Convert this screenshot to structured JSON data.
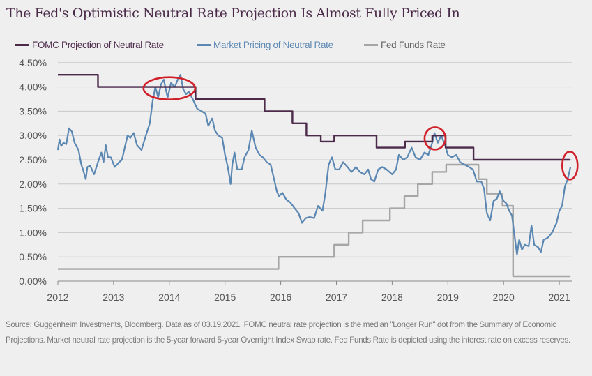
{
  "chart_data": {
    "type": "line",
    "title": "The Fed's Optimistic Neutral Rate Projection Is Almost Fully Priced In",
    "xlabel": "",
    "ylabel": "",
    "xlim": [
      2012,
      2021.2
    ],
    "ylim": [
      0,
      4.5
    ],
    "x_ticks": [
      "2012",
      "2013",
      "2014",
      "2015",
      "2016",
      "2017",
      "2018",
      "2019",
      "2020",
      "2021"
    ],
    "y_ticks": [
      "0.00%",
      "0.50%",
      "1.00%",
      "1.50%",
      "2.00%",
      "2.50%",
      "3.00%",
      "3.50%",
      "4.00%",
      "4.50%"
    ],
    "grid": "horizontal",
    "legend_position": "top",
    "series": [
      {
        "name": "FOMC Projection of Neutral Rate",
        "color": "#4b2a4a",
        "step": true,
        "points": [
          [
            2012.0,
            4.25
          ],
          [
            2012.72,
            4.0
          ],
          [
            2014.47,
            3.75
          ],
          [
            2015.71,
            3.5
          ],
          [
            2016.21,
            3.25
          ],
          [
            2016.46,
            3.0
          ],
          [
            2016.72,
            2.875
          ],
          [
            2016.96,
            3.0
          ],
          [
            2017.72,
            2.75
          ],
          [
            2018.23,
            2.875
          ],
          [
            2018.72,
            3.0
          ],
          [
            2018.96,
            2.75
          ],
          [
            2019.46,
            2.5
          ],
          [
            2021.2,
            2.5
          ]
        ]
      },
      {
        "name": "Market Pricing of Neutral Rate",
        "color": "#5b87b3",
        "step": false,
        "points": [
          [
            2012.0,
            2.7
          ],
          [
            2012.03,
            2.92
          ],
          [
            2012.06,
            2.78
          ],
          [
            2012.1,
            2.85
          ],
          [
            2012.15,
            2.82
          ],
          [
            2012.2,
            3.15
          ],
          [
            2012.25,
            3.08
          ],
          [
            2012.3,
            2.85
          ],
          [
            2012.37,
            2.7
          ],
          [
            2012.42,
            2.4
          ],
          [
            2012.45,
            2.3
          ],
          [
            2012.5,
            2.1
          ],
          [
            2012.53,
            2.35
          ],
          [
            2012.58,
            2.38
          ],
          [
            2012.65,
            2.2
          ],
          [
            2012.72,
            2.45
          ],
          [
            2012.78,
            2.65
          ],
          [
            2012.82,
            2.45
          ],
          [
            2012.86,
            2.8
          ],
          [
            2012.9,
            2.55
          ],
          [
            2012.95,
            2.55
          ],
          [
            2013.02,
            2.35
          ],
          [
            2013.1,
            2.45
          ],
          [
            2013.15,
            2.5
          ],
          [
            2013.2,
            2.75
          ],
          [
            2013.25,
            3.0
          ],
          [
            2013.3,
            2.95
          ],
          [
            2013.36,
            3.05
          ],
          [
            2013.42,
            2.8
          ],
          [
            2013.5,
            2.7
          ],
          [
            2013.58,
            3.0
          ],
          [
            2013.65,
            3.25
          ],
          [
            2013.7,
            3.7
          ],
          [
            2013.75,
            4.0
          ],
          [
            2013.8,
            3.78
          ],
          [
            2013.85,
            4.05
          ],
          [
            2013.9,
            4.15
          ],
          [
            2013.97,
            3.78
          ],
          [
            2014.03,
            4.08
          ],
          [
            2014.1,
            4.0
          ],
          [
            2014.15,
            4.15
          ],
          [
            2014.2,
            4.25
          ],
          [
            2014.25,
            3.95
          ],
          [
            2014.3,
            3.85
          ],
          [
            2014.35,
            3.9
          ],
          [
            2014.42,
            3.75
          ],
          [
            2014.5,
            3.55
          ],
          [
            2014.58,
            3.5
          ],
          [
            2014.65,
            3.45
          ],
          [
            2014.7,
            3.2
          ],
          [
            2014.77,
            3.35
          ],
          [
            2014.82,
            3.1
          ],
          [
            2014.88,
            3.0
          ],
          [
            2014.95,
            2.95
          ],
          [
            2015.0,
            2.6
          ],
          [
            2015.05,
            2.35
          ],
          [
            2015.1,
            2.0
          ],
          [
            2015.13,
            2.4
          ],
          [
            2015.17,
            2.65
          ],
          [
            2015.22,
            2.3
          ],
          [
            2015.3,
            2.3
          ],
          [
            2015.35,
            2.55
          ],
          [
            2015.42,
            2.7
          ],
          [
            2015.48,
            3.1
          ],
          [
            2015.55,
            2.75
          ],
          [
            2015.62,
            2.6
          ],
          [
            2015.68,
            2.55
          ],
          [
            2015.75,
            2.45
          ],
          [
            2015.82,
            2.4
          ],
          [
            2015.88,
            2.1
          ],
          [
            2015.93,
            1.85
          ],
          [
            2015.97,
            1.75
          ],
          [
            2016.03,
            1.82
          ],
          [
            2016.1,
            1.68
          ],
          [
            2016.17,
            1.62
          ],
          [
            2016.25,
            1.5
          ],
          [
            2016.32,
            1.4
          ],
          [
            2016.38,
            1.2
          ],
          [
            2016.45,
            1.3
          ],
          [
            2016.52,
            1.32
          ],
          [
            2016.6,
            1.3
          ],
          [
            2016.67,
            1.55
          ],
          [
            2016.75,
            1.45
          ],
          [
            2016.8,
            1.8
          ],
          [
            2016.86,
            2.4
          ],
          [
            2016.92,
            2.55
          ],
          [
            2016.98,
            2.3
          ],
          [
            2017.05,
            2.3
          ],
          [
            2017.12,
            2.45
          ],
          [
            2017.2,
            2.35
          ],
          [
            2017.27,
            2.25
          ],
          [
            2017.35,
            2.35
          ],
          [
            2017.42,
            2.25
          ],
          [
            2017.5,
            2.2
          ],
          [
            2017.57,
            2.3
          ],
          [
            2017.62,
            2.1
          ],
          [
            2017.68,
            2.05
          ],
          [
            2017.75,
            2.3
          ],
          [
            2017.82,
            2.35
          ],
          [
            2017.9,
            2.3
          ],
          [
            2018.0,
            2.2
          ],
          [
            2018.07,
            2.3
          ],
          [
            2018.12,
            2.6
          ],
          [
            2018.2,
            2.5
          ],
          [
            2018.27,
            2.55
          ],
          [
            2018.35,
            2.75
          ],
          [
            2018.42,
            2.55
          ],
          [
            2018.5,
            2.5
          ],
          [
            2018.58,
            2.65
          ],
          [
            2018.65,
            2.6
          ],
          [
            2018.72,
            2.85
          ],
          [
            2018.76,
            3.05
          ],
          [
            2018.82,
            2.85
          ],
          [
            2018.88,
            3.0
          ],
          [
            2018.95,
            2.8
          ],
          [
            2019.0,
            2.6
          ],
          [
            2019.07,
            2.55
          ],
          [
            2019.15,
            2.6
          ],
          [
            2019.22,
            2.45
          ],
          [
            2019.3,
            2.4
          ],
          [
            2019.38,
            2.35
          ],
          [
            2019.45,
            2.3
          ],
          [
            2019.52,
            2.05
          ],
          [
            2019.6,
            2.05
          ],
          [
            2019.65,
            1.9
          ],
          [
            2019.7,
            1.4
          ],
          [
            2019.76,
            1.25
          ],
          [
            2019.82,
            1.65
          ],
          [
            2019.88,
            1.7
          ],
          [
            2019.93,
            1.85
          ],
          [
            2020.0,
            1.65
          ],
          [
            2020.05,
            1.6
          ],
          [
            2020.1,
            1.45
          ],
          [
            2020.15,
            1.35
          ],
          [
            2020.2,
            0.9
          ],
          [
            2020.24,
            0.55
          ],
          [
            2020.28,
            0.85
          ],
          [
            2020.33,
            0.65
          ],
          [
            2020.38,
            0.75
          ],
          [
            2020.45,
            0.72
          ],
          [
            2020.5,
            1.15
          ],
          [
            2020.55,
            0.75
          ],
          [
            2020.62,
            0.7
          ],
          [
            2020.67,
            0.6
          ],
          [
            2020.72,
            0.85
          ],
          [
            2020.8,
            0.9
          ],
          [
            2020.87,
            1.0
          ],
          [
            2020.95,
            1.2
          ],
          [
            2021.0,
            1.45
          ],
          [
            2021.05,
            1.55
          ],
          [
            2021.1,
            1.95
          ],
          [
            2021.15,
            2.1
          ],
          [
            2021.2,
            2.35
          ]
        ]
      },
      {
        "name": "Fed Funds Rate",
        "color": "#a6a6a6",
        "step": true,
        "points": [
          [
            2012.0,
            0.25
          ],
          [
            2015.96,
            0.5
          ],
          [
            2016.96,
            0.75
          ],
          [
            2017.22,
            1.0
          ],
          [
            2017.47,
            1.25
          ],
          [
            2017.96,
            1.5
          ],
          [
            2018.22,
            1.75
          ],
          [
            2018.46,
            2.0
          ],
          [
            2018.72,
            2.25
          ],
          [
            2018.97,
            2.4
          ],
          [
            2019.55,
            2.1
          ],
          [
            2019.7,
            1.8
          ],
          [
            2019.98,
            1.55
          ],
          [
            2020.17,
            0.1
          ],
          [
            2021.2,
            0.1
          ]
        ]
      }
    ],
    "annotations": [
      {
        "type": "ellipse",
        "color": "#d0202a",
        "x": 2014.0,
        "y": 3.97
      },
      {
        "type": "ellipse",
        "color": "#d0202a",
        "x": 2018.77,
        "y": 2.94
      },
      {
        "type": "ellipse",
        "color": "#d0202a",
        "x": 2021.19,
        "y": 2.38
      }
    ],
    "footer": "Source: Guggenheim Investments, Bloomberg. Data as of 03.19.2021. FOMC neutral rate projection is the median \"Longer Run\" dot from the Summary of Economic Projections. Market neutral rate projection is the 5-year forward 5-year Overnight Index Swap rate. Fed Funds Rate is depicted using the interest rate on excess reserves."
  }
}
